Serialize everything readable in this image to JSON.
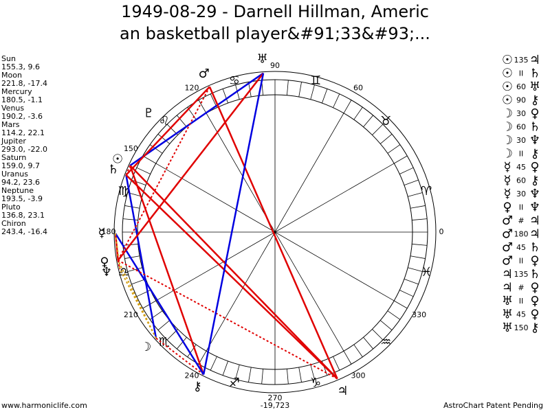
{
  "title": [
    "1949-08-29 - Darnell Hillman, Americ",
    "an basketball player&#91;33&#93;..."
  ],
  "bodies": [
    {
      "name": "Sun",
      "glyph": "☉",
      "position": "155.3, 9.6"
    },
    {
      "name": "Moon",
      "glyph": "☽",
      "position": "221.8, -17.4"
    },
    {
      "name": "Mercury",
      "glyph": "☿",
      "position": "180.5, -1.1"
    },
    {
      "name": "Venus",
      "glyph": "♀",
      "position": "190.2, -3.6"
    },
    {
      "name": "Mars",
      "glyph": "♂",
      "position": "114.2, 22.1"
    },
    {
      "name": "Jupiter",
      "glyph": "♃",
      "position": "293.0, -22.0"
    },
    {
      "name": "Saturn",
      "glyph": "♄",
      "position": "159.0, 9.7"
    },
    {
      "name": "Uranus",
      "glyph": "♅",
      "position": "94.2, 23.6"
    },
    {
      "name": "Neptune",
      "glyph": "♆",
      "position": "193.5, -3.9"
    },
    {
      "name": "Pluto",
      "glyph": "♇",
      "position": "136.8, 23.1"
    },
    {
      "name": "Chiron",
      "glyph": "⚷",
      "position": "243.4, -16.4"
    }
  ],
  "aspects": [
    {
      "a": "☉",
      "label": "135",
      "b": "♃",
      "color": "#e00000",
      "style": "solid"
    },
    {
      "a": "☉",
      "label": "II",
      "b": "♄",
      "color": "#e00000",
      "style": "dotted"
    },
    {
      "a": "☉",
      "label": "60",
      "b": "♅",
      "color": "#0000e0",
      "style": "solid"
    },
    {
      "a": "☉",
      "label": "90",
      "b": "⚷",
      "color": "#e00000",
      "style": "solid"
    },
    {
      "a": "☽",
      "label": "30",
      "b": "♀",
      "color": "#d4a017",
      "style": "dotted"
    },
    {
      "a": "☽",
      "label": "60",
      "b": "♄",
      "color": "#0000e0",
      "style": "solid"
    },
    {
      "a": "☽",
      "label": "30",
      "b": "♆",
      "color": "#d4a017",
      "style": "dotted"
    },
    {
      "a": "☽",
      "label": "II",
      "b": "⚷",
      "color": "#e00000",
      "style": "dotted"
    },
    {
      "a": "☿",
      "label": "45",
      "b": "♀",
      "color": "#e00000",
      "style": "solid"
    },
    {
      "a": "☿",
      "label": "60",
      "b": "⚷",
      "color": "#0000e0",
      "style": "solid"
    },
    {
      "a": "☿",
      "label": "30",
      "b": "♆",
      "color": "#d4a017",
      "style": "dotted"
    },
    {
      "a": "♀",
      "label": "II",
      "b": "♆",
      "color": "#e00000",
      "style": "dotted"
    },
    {
      "a": "♂",
      "label": "#",
      "b": "♃",
      "color": "#e00000",
      "style": "dotted"
    },
    {
      "a": "♂",
      "label": "180",
      "b": "♃",
      "color": "#e00000",
      "style": "solid"
    },
    {
      "a": "♂",
      "label": "45",
      "b": "♄",
      "color": "#e00000",
      "style": "solid"
    },
    {
      "a": "♂",
      "label": "II",
      "b": "♀",
      "color": "#e00000",
      "style": "dotted"
    },
    {
      "a": "♃",
      "label": "135",
      "b": "♄",
      "color": "#e00000",
      "style": "solid"
    },
    {
      "a": "♃",
      "label": "#",
      "b": "♀",
      "color": "#e00000",
      "style": "dotted"
    },
    {
      "a": "♅",
      "label": "II",
      "b": "♀",
      "color": "#e00000",
      "style": "dotted"
    },
    {
      "a": "♅",
      "label": "45",
      "b": "♀",
      "color": "#e00000",
      "style": "solid"
    },
    {
      "a": "♅",
      "label": "150",
      "b": "⚷",
      "color": "#0000e0",
      "style": "solid"
    }
  ],
  "signs": [
    "♈",
    "♉",
    "♊",
    "♋",
    "♌",
    "♍",
    "♎",
    "♏",
    "♐",
    "♑",
    "♒",
    "♓"
  ],
  "degree_labels": [
    0,
    60,
    90,
    120,
    150,
    180,
    210,
    240,
    270,
    300,
    330
  ],
  "footer": {
    "left": "www.harmoniclife.com",
    "center": "-19,723",
    "right": "AstroChart Patent Pending"
  }
}
